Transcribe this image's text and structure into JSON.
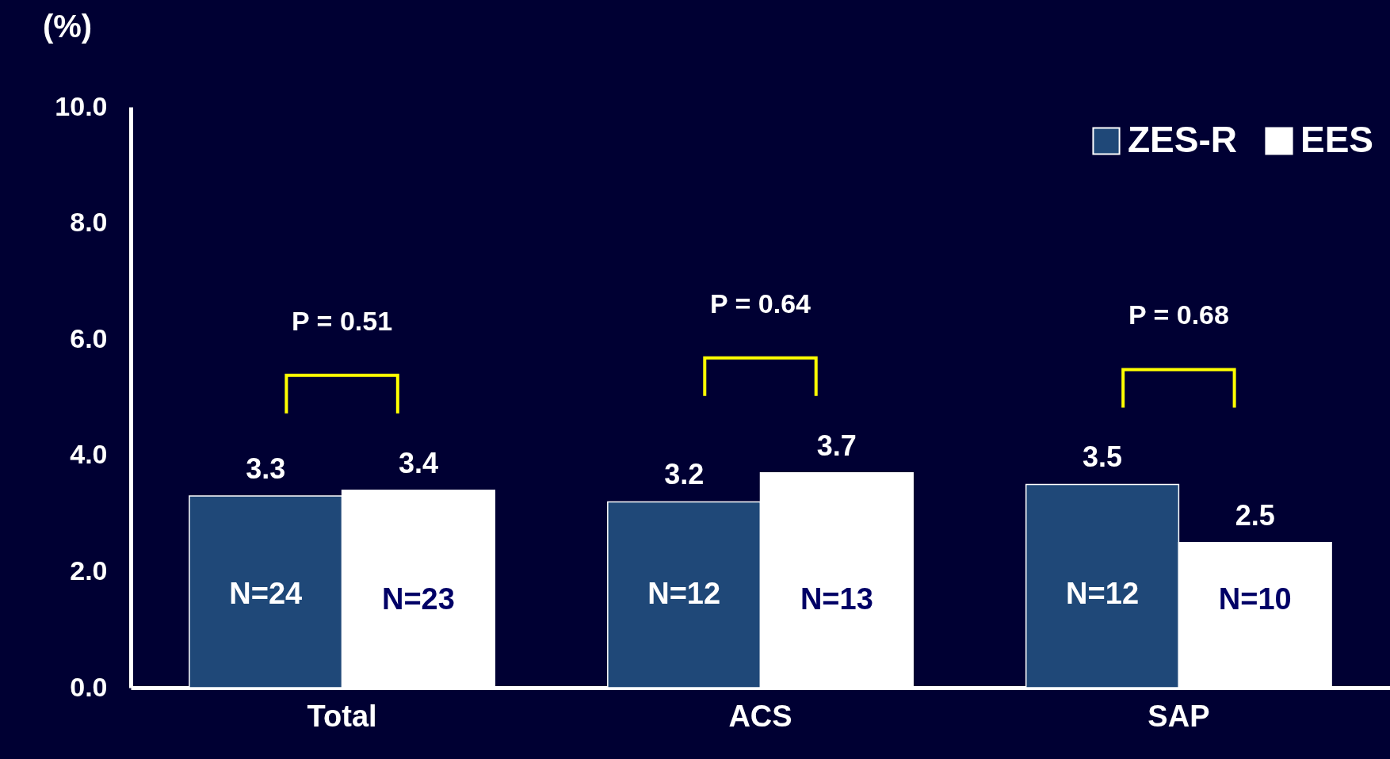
{
  "chart_data": {
    "type": "bar",
    "ylabel": "(%)",
    "categories": [
      "Total",
      "ACS",
      "SAP"
    ],
    "series": [
      {
        "name": "ZES-R",
        "color": "#1f4878",
        "values": [
          3.3,
          3.2,
          3.5
        ]
      },
      {
        "name": "EES",
        "color": "#ffffff",
        "values": [
          3.4,
          3.7,
          2.5
        ]
      }
    ],
    "ylim": [
      0,
      10
    ],
    "yticks": [
      {
        "value": 0,
        "label": "0.0"
      },
      {
        "value": 2,
        "label": "2.0"
      },
      {
        "value": 4,
        "label": "4.0"
      },
      {
        "value": 6,
        "label": "6.0"
      },
      {
        "value": 8,
        "label": "8.0"
      },
      {
        "value": 10,
        "label": "10.0"
      }
    ],
    "data_labels": true,
    "grid": false,
    "legend": "top right",
    "annotations": [
      {
        "text": "N=24",
        "x": "Total",
        "y": 1.6
      },
      {
        "text": "N=23",
        "x": "Total",
        "y": 1.5
      },
      {
        "text": "N=12",
        "x": "ACS",
        "y": 1.6
      },
      {
        "text": "N=13",
        "x": "ACS",
        "y": 1.5
      },
      {
        "text": "N=12",
        "x": "SAP",
        "y": 1.6
      },
      {
        "text": "N=10",
        "x": "SAP",
        "y": 1.5
      },
      "P = 0.51",
      "P = 0.64",
      "P = 0.68"
    ]
  }
}
